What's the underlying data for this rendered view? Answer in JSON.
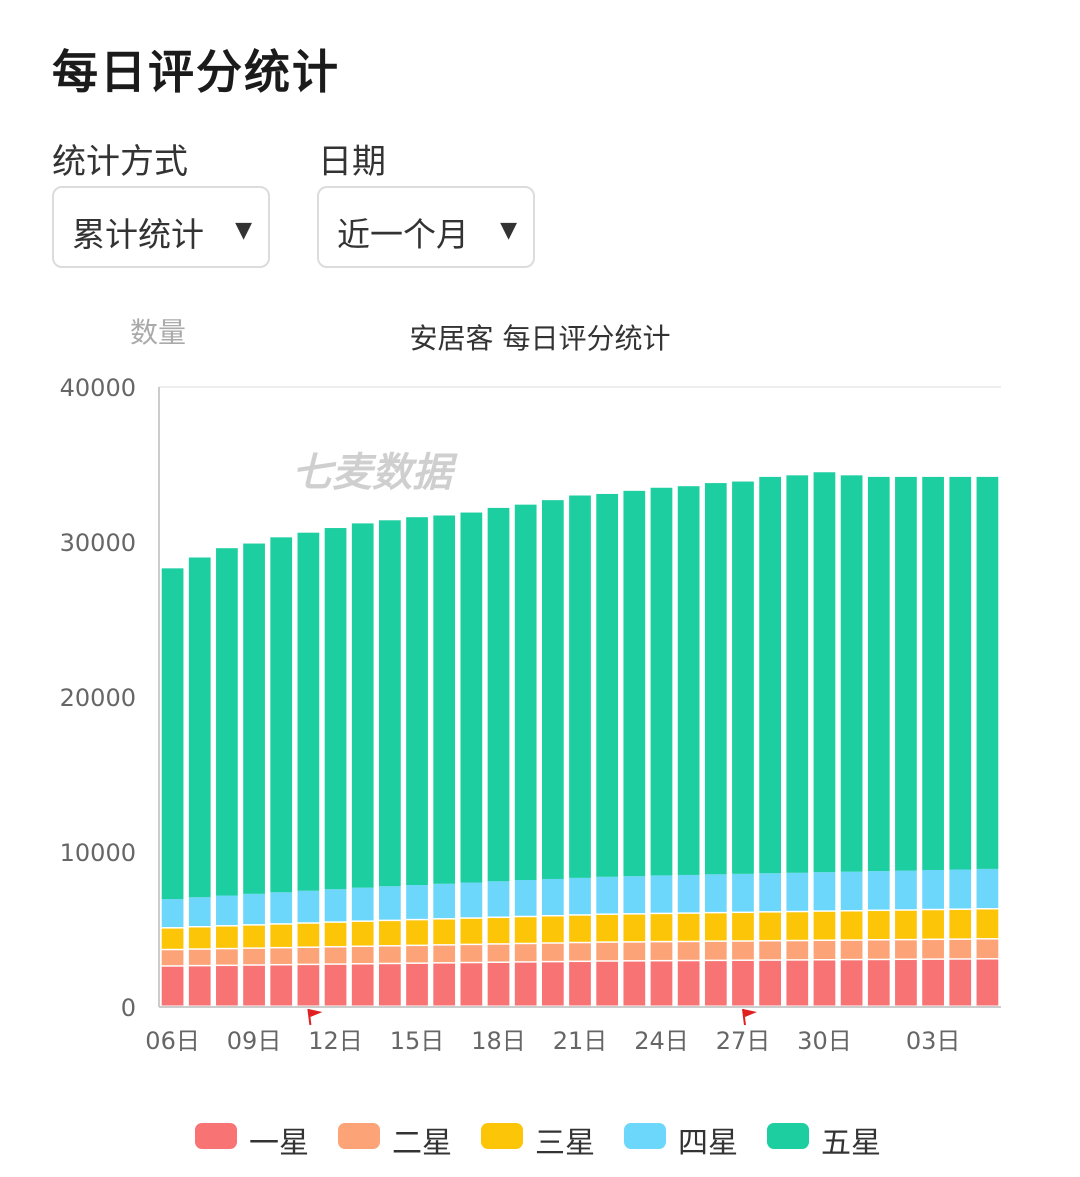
{
  "page": {
    "title": "每日评分统计",
    "stat_method_label": "统计方式",
    "stat_method_value": "累计统计",
    "date_label": "日期",
    "date_value": "近一个月",
    "caret": "▼"
  },
  "colors": {
    "one_star": "#f87373",
    "two_star": "#fca477",
    "three_star": "#fcc507",
    "four_star": "#6dd6fb",
    "five_star": "#1ccea0",
    "axis": "#cccccc",
    "grid": "#eeeeee",
    "tick_text": "#666666",
    "watermark": "#cfcfcf",
    "marker": "#e02020"
  },
  "chart_data": {
    "type": "bar",
    "stacked": true,
    "title": "安居客 每日评分统计",
    "ylabel": "数量",
    "xlabel": "",
    "watermark": "七麦数据",
    "ylim": [
      0,
      40000
    ],
    "yticks": [
      0,
      10000,
      20000,
      30000,
      40000
    ],
    "grid": false,
    "legend_position": "bottom",
    "categories": [
      "06日",
      "07日",
      "08日",
      "09日",
      "10日",
      "11日",
      "12日",
      "13日",
      "14日",
      "15日",
      "16日",
      "17日",
      "18日",
      "19日",
      "20日",
      "21日",
      "22日",
      "23日",
      "24日",
      "25日",
      "26日",
      "27日",
      "28日",
      "29日",
      "30日",
      "31日",
      "01日",
      "02日",
      "03日",
      "04日",
      "05日"
    ],
    "xtick_labels": [
      "06日",
      "09日",
      "12日",
      "15日",
      "18日",
      "21日",
      "24日",
      "27日",
      "30日",
      "03日"
    ],
    "markers": [
      "11日",
      "27日"
    ],
    "series": [
      {
        "name": "一星",
        "values": [
          2600,
          2620,
          2640,
          2660,
          2680,
          2700,
          2720,
          2740,
          2760,
          2780,
          2800,
          2820,
          2840,
          2860,
          2880,
          2900,
          2920,
          2930,
          2940,
          2950,
          2960,
          2970,
          2980,
          2990,
          3000,
          3010,
          3020,
          3030,
          3040,
          3050,
          3060
        ]
      },
      {
        "name": "二星",
        "values": [
          1060,
          1070,
          1080,
          1090,
          1100,
          1110,
          1120,
          1130,
          1140,
          1150,
          1160,
          1170,
          1180,
          1190,
          1200,
          1210,
          1220,
          1220,
          1230,
          1230,
          1240,
          1240,
          1250,
          1250,
          1260,
          1260,
          1270,
          1270,
          1280,
          1280,
          1290
        ]
      },
      {
        "name": "三星",
        "values": [
          1400,
          1440,
          1470,
          1500,
          1530,
          1560,
          1590,
          1620,
          1640,
          1660,
          1680,
          1700,
          1720,
          1740,
          1760,
          1780,
          1800,
          1810,
          1820,
          1830,
          1840,
          1850,
          1860,
          1870,
          1880,
          1890,
          1900,
          1910,
          1920,
          1930,
          1940
        ]
      },
      {
        "name": "四星",
        "values": [
          1900,
          1950,
          2000,
          2050,
          2090,
          2130,
          2170,
          2210,
          2250,
          2280,
          2310,
          2340,
          2370,
          2400,
          2420,
          2440,
          2460,
          2480,
          2500,
          2510,
          2520,
          2530,
          2540,
          2550,
          2560,
          2570,
          2580,
          2590,
          2600,
          2610,
          2620
        ]
      },
      {
        "name": "五星",
        "values": [
          21340,
          21920,
          22410,
          22600,
          22900,
          23100,
          23300,
          23500,
          23610,
          23730,
          23760,
          23870,
          24090,
          24220,
          24440,
          24670,
          24700,
          24860,
          25010,
          25080,
          25240,
          25310,
          25570,
          25640,
          25800,
          25570,
          25430,
          25400,
          25360,
          25330,
          25290
        ]
      }
    ]
  },
  "legend": {
    "items": [
      {
        "label": "一星",
        "color_key": "one_star"
      },
      {
        "label": "二星",
        "color_key": "two_star"
      },
      {
        "label": "三星",
        "color_key": "three_star"
      },
      {
        "label": "四星",
        "color_key": "four_star"
      },
      {
        "label": "五星",
        "color_key": "five_star"
      }
    ]
  }
}
